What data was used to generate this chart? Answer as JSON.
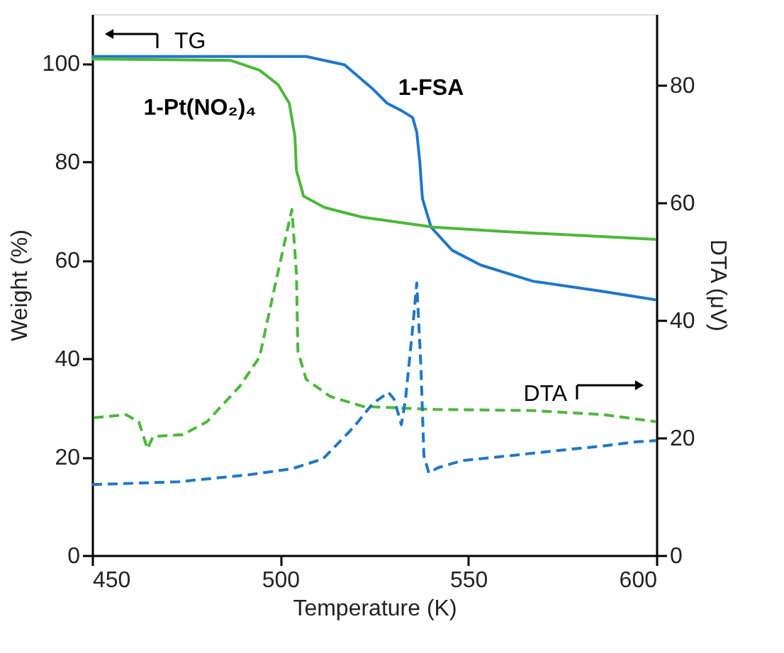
{
  "chart_data": {
    "type": "line",
    "xlabel": "Temperature (K)",
    "ylabel": "Weight (%)",
    "y2label": "DTA (μV)",
    "xlim": [
      450,
      600
    ],
    "xticks": [
      450,
      500,
      550,
      600
    ],
    "ylim": [
      0,
      110
    ],
    "yticks": [
      0,
      20,
      40,
      60,
      80,
      100
    ],
    "y2lim": [
      0,
      92
    ],
    "y2ticks": [
      0,
      20,
      40,
      60,
      80
    ],
    "grid": false,
    "marker": "none",
    "annotations": [
      "TG",
      "DTA"
    ],
    "series": [
      {
        "name": "1-FSA",
        "color": "#1f77c8",
        "line_style": "solid",
        "x": [
          450,
          506.9,
          517.1,
          524.6,
          528.4,
          532.2,
          535.2,
          536.3,
          537.1,
          537.8,
          540.1,
          545.7,
          553.3,
          567.2,
          586.1,
          600
        ],
        "values": [
          101.4,
          101.4,
          99.7,
          94.8,
          91.9,
          90.4,
          89,
          86,
          80,
          72.5,
          66.7,
          62,
          59,
          55.7,
          53.6,
          51.9
        ]
      },
      {
        "name": "1-Pt(NO₂)₄",
        "color": "#4cb83a",
        "line_style": "solid",
        "x": [
          450,
          486.9,
          494.5,
          499.4,
          502.4,
          503.9,
          504.3,
          506.2,
          511.8,
          522,
          540.8,
          559.7,
          600
        ],
        "values": [
          100.9,
          100.6,
          98.6,
          95.7,
          91.9,
          85.2,
          78.3,
          73,
          70.7,
          68.7,
          66.7,
          65.8,
          64.2
        ]
      },
      {
        "color": "#4cb83a",
        "line_style": "dashed",
        "axis": "y2",
        "x": [
          450.4,
          459,
          462.4,
          464.7,
          466.2,
          474.1,
          480.5,
          489.2,
          494.5,
          498.6,
          503.1,
          504.3,
          504.7,
          506.9,
          513.3,
          522,
          540.8,
          567.2,
          586.1,
          600
        ],
        "values": [
          23.4,
          23.9,
          22.7,
          18.1,
          20.2,
          20.5,
          22.7,
          28.7,
          33.7,
          45.8,
          58.8,
          48,
          34.7,
          29.9,
          27,
          25.3,
          24.8,
          24.6,
          23.9,
          22.7
        ]
      },
      {
        "color": "#1f77c8",
        "line_style": "dashed",
        "axis": "y2",
        "x": [
          450,
          473,
          491.8,
          503.1,
          511.4,
          519.4,
          524.6,
          528.8,
          530.3,
          532.2,
          533.3,
          535.2,
          536.3,
          537.4,
          538.2,
          539.5,
          542,
          548.4,
          560.8,
          573.6,
          586.1,
          594.7,
          600
        ],
        "values": [
          12,
          12.5,
          13.7,
          14.7,
          16.4,
          21.7,
          25.8,
          27.7,
          26.5,
          22.2,
          26.5,
          38.6,
          46.3,
          32,
          16.9,
          14,
          14.9,
          16.1,
          16.9,
          17.8,
          18.6,
          19.3,
          19.5
        ]
      }
    ]
  }
}
